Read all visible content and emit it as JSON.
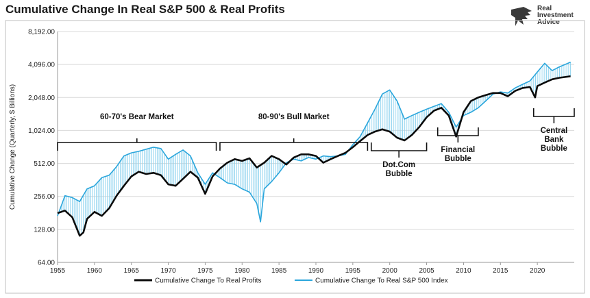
{
  "title": "Cumulative Change In Real S&P 500 & Real Profits",
  "brand": {
    "line1": "Real",
    "line2": "Investment",
    "line3": "Advice"
  },
  "colors": {
    "profits": "#0b0b0b",
    "sp500": "#2aa6dc",
    "fill": "#8fd3ef"
  },
  "chart_data": {
    "type": "line",
    "title": "Cumulative Change In Real S&P 500 & Real Profits",
    "ylabel": "Cumulative Change (Quarterly, $ Billions)",
    "xlabel": "",
    "yscale": "log2",
    "ylim": [
      64,
      8192
    ],
    "xlim": [
      1955,
      2025
    ],
    "grid": true,
    "legend": "bottom",
    "yticks": [
      "64.00",
      "128.00",
      "256.00",
      "512.00",
      "1,024.00",
      "2,048.00",
      "4,096.00",
      "8,192.00"
    ],
    "xticks": [
      "1955",
      "1960",
      "1965",
      "1970",
      "1975",
      "1980",
      "1985",
      "1990",
      "1995",
      "2000",
      "2005",
      "2010",
      "2015",
      "2020"
    ],
    "series": [
      {
        "name": "Cumulative Change To Real Profits",
        "x": [
          1955,
          1956,
          1957,
          1958,
          1958.5,
          1959,
          1960,
          1961,
          1962,
          1963,
          1964,
          1965,
          1966,
          1967,
          1968,
          1969,
          1970,
          1971,
          1972,
          1973,
          1974,
          1975,
          1976,
          1977,
          1978,
          1979,
          1980,
          1981,
          1982,
          1983,
          1984,
          1985,
          1986,
          1987,
          1988,
          1989,
          1990,
          1991,
          1992,
          1993,
          1994,
          1995,
          1996,
          1997,
          1998,
          1999,
          2000,
          2001,
          2002,
          2003,
          2004,
          2005,
          2006,
          2007,
          2008,
          2009,
          2010,
          2011,
          2012,
          2013,
          2014,
          2015,
          2016,
          2017,
          2018,
          2019,
          2019.7,
          2020,
          2021,
          2022,
          2023,
          2024.5
        ],
        "values": [
          180,
          190,
          165,
          112,
          120,
          160,
          185,
          170,
          200,
          260,
          320,
          390,
          430,
          410,
          420,
          400,
          330,
          320,
          370,
          430,
          380,
          270,
          390,
          460,
          520,
          560,
          540,
          570,
          470,
          520,
          600,
          560,
          500,
          580,
          620,
          620,
          600,
          520,
          560,
          600,
          640,
          720,
          820,
          930,
          1000,
          1050,
          1000,
          880,
          830,
          930,
          1100,
          1350,
          1550,
          1650,
          1400,
          900,
          1500,
          1900,
          2050,
          2150,
          2250,
          2250,
          2100,
          2350,
          2500,
          2550,
          2050,
          2600,
          2800,
          3000,
          3100,
          3200
        ]
      },
      {
        "name": "Cumulative Change To Real S&P 500 Index",
        "x": [
          1955,
          1956,
          1957,
          1958,
          1959,
          1960,
          1961,
          1962,
          1963,
          1964,
          1965,
          1966,
          1967,
          1968,
          1969,
          1970,
          1971,
          1972,
          1973,
          1974,
          1975,
          1976,
          1977,
          1978,
          1979,
          1980,
          1981,
          1982,
          1982.5,
          1983,
          1984,
          1985,
          1986,
          1987,
          1988,
          1989,
          1990,
          1991,
          1992,
          1993,
          1994,
          1995,
          1996,
          1997,
          1998,
          1999,
          2000,
          2001,
          2002,
          2003,
          2004,
          2005,
          2006,
          2007,
          2008,
          2009,
          2010,
          2011,
          2012,
          2013,
          2014,
          2015,
          2016,
          2017,
          2018,
          2019,
          2020,
          2021,
          2022,
          2023,
          2024.5
        ],
        "values": [
          170,
          260,
          250,
          230,
          300,
          320,
          380,
          400,
          480,
          600,
          640,
          660,
          690,
          720,
          700,
          560,
          620,
          680,
          600,
          420,
          330,
          420,
          380,
          340,
          330,
          300,
          280,
          220,
          150,
          300,
          350,
          420,
          520,
          560,
          540,
          580,
          560,
          600,
          590,
          600,
          620,
          760,
          900,
          1200,
          1600,
          2200,
          2400,
          1900,
          1300,
          1400,
          1500,
          1600,
          1700,
          1800,
          1500,
          1100,
          1400,
          1500,
          1650,
          1900,
          2200,
          2300,
          2250,
          2500,
          2700,
          2900,
          3500,
          4200,
          3600,
          3900,
          4300
        ]
      }
    ],
    "annotations": [
      {
        "text": "60-70's Bear Market",
        "x_from": 1955,
        "x_to": 1976.5,
        "position": "above"
      },
      {
        "text": "80-90's Bull Market",
        "x_from": 1977,
        "x_to": 1997,
        "position": "above"
      },
      {
        "text": "Dot.Com Bubble",
        "x_from": 1997.5,
        "x_to": 2005,
        "position": "below"
      },
      {
        "text": "Financial Bubble",
        "x_from": 2006.5,
        "x_to": 2012,
        "position": "below"
      },
      {
        "text": "Central Bank Bubble",
        "x_from": 2019.5,
        "x_to": 2025,
        "position": "below"
      }
    ]
  }
}
